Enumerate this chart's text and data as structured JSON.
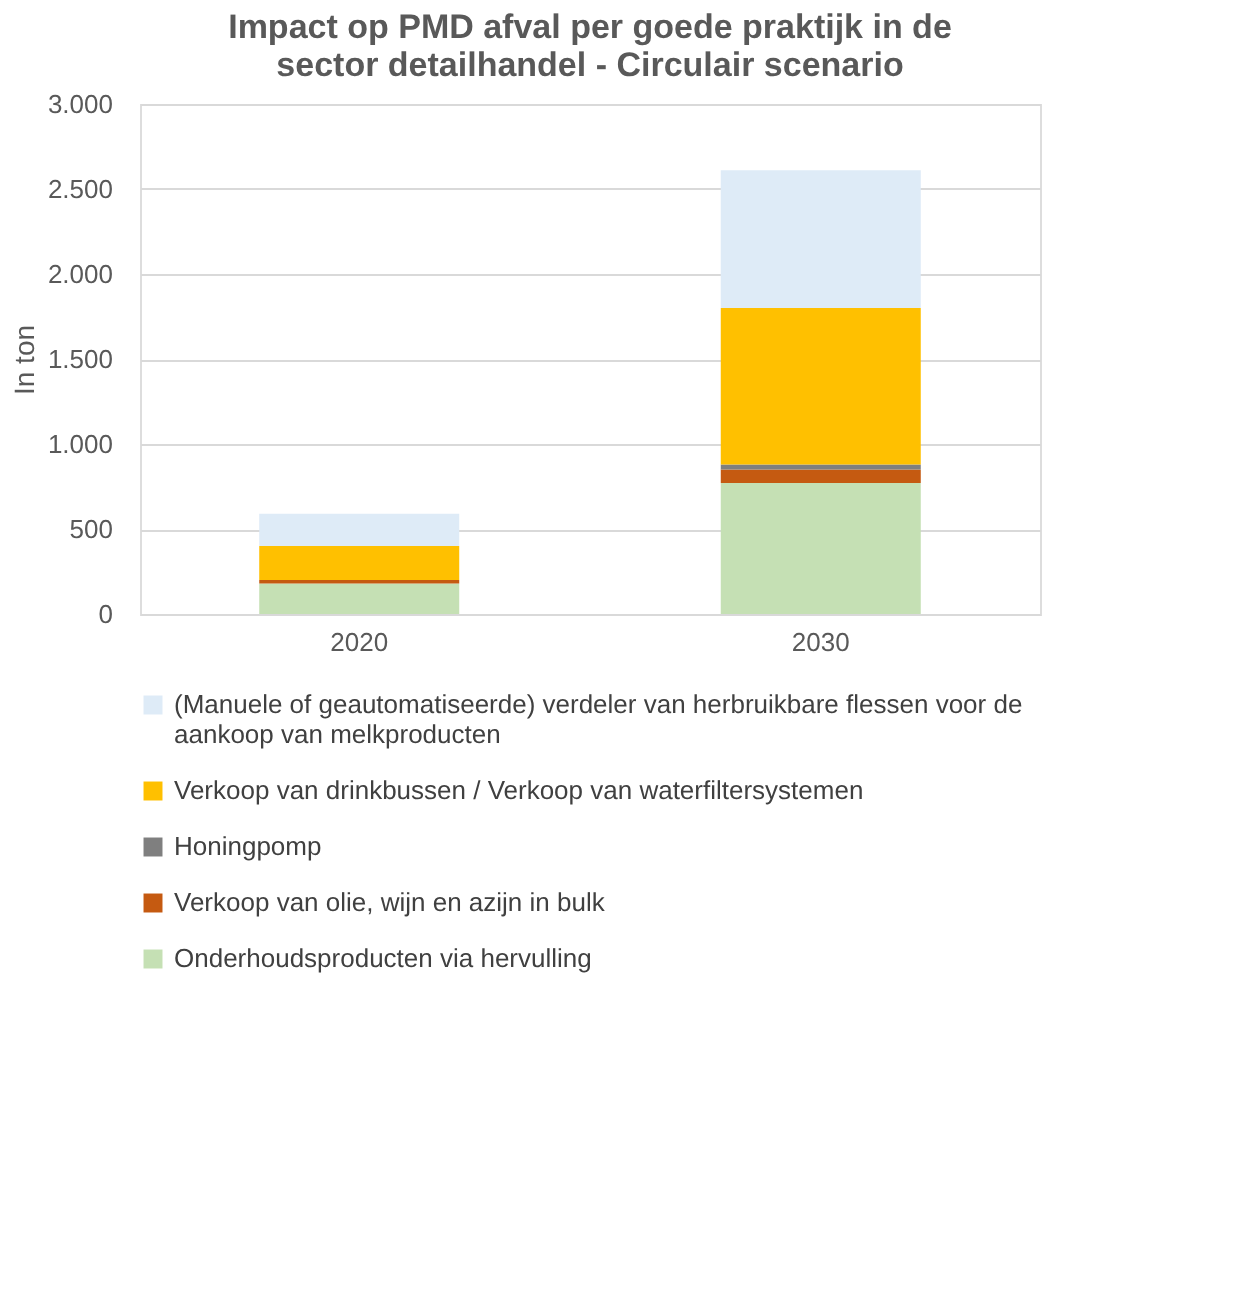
{
  "chart_data": {
    "type": "bar",
    "stacked": true,
    "title": "Impact op PMD afval per goede praktijk in de sector detailhandel - Circulair scenario",
    "ylabel": "In ton",
    "categories": [
      "2020",
      "2030"
    ],
    "series": [
      {
        "name": "Onderhoudsproducten via hervulling",
        "color": "#c5e0b4",
        "values": [
          180,
          770
        ]
      },
      {
        "name": "Verkoop van olie, wijn en azijn in bulk",
        "color": "#c55a11",
        "values": [
          20,
          80
        ]
      },
      {
        "name": "Honingpomp",
        "color": "#7f7f7f",
        "values": [
          null,
          30
        ]
      },
      {
        "name": "Verkoop van drinkbussen / Verkoop van waterfiltersystemen",
        "color": "#ffc000",
        "values": [
          200,
          920
        ]
      },
      {
        "name": "(Manuele of geautomatiseerde) verdeler van herbruikbare flessen voor de aankoop van melkproducten",
        "color": "#deebf7",
        "values": [
          190,
          810
        ]
      }
    ],
    "ylim": [
      0,
      3000
    ],
    "yticks": [
      {
        "value": 0,
        "label": "0"
      },
      {
        "value": 500,
        "label": "500"
      },
      {
        "value": 1000,
        "label": "1.000"
      },
      {
        "value": 1500,
        "label": "1.500"
      },
      {
        "value": 2000,
        "label": "2.000"
      },
      {
        "value": 2500,
        "label": "2.500"
      },
      {
        "value": 3000,
        "label": "3.000"
      }
    ],
    "grid": "y",
    "legend": "bottom"
  }
}
